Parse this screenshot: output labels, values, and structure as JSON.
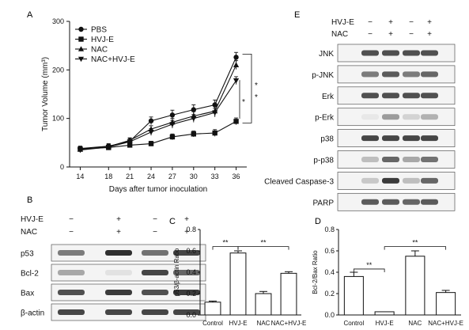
{
  "panels": {
    "A": {
      "letter": "A"
    },
    "B": {
      "letter": "B"
    },
    "C": {
      "letter": "C"
    },
    "D": {
      "letter": "D"
    },
    "E": {
      "letter": "E"
    }
  },
  "chart_data": [
    {
      "id": "A",
      "type": "line",
      "title": "",
      "xlabel": "Days after tumor inoculation",
      "ylabel": "Tumor Volume (mm³)",
      "x": [
        14,
        18,
        21,
        24,
        27,
        30,
        33,
        36
      ],
      "xticks": [
        "14",
        "18",
        "21",
        "24",
        "27",
        "30",
        "33",
        "36"
      ],
      "ylim": [
        0,
        300
      ],
      "yticks": [
        "0",
        "100",
        "200",
        "300"
      ],
      "legend_position": "top-left",
      "series": [
        {
          "name": "PBS",
          "marker": "circle",
          "values": [
            38,
            43,
            53,
            95,
            107,
            118,
            128,
            226
          ],
          "errors": [
            5,
            5,
            6,
            8,
            10,
            10,
            10,
            10
          ]
        },
        {
          "name": "HVJ-E",
          "marker": "square",
          "values": [
            37,
            40,
            45,
            48,
            62,
            68,
            70,
            94
          ],
          "errors": [
            4,
            4,
            4,
            5,
            6,
            6,
            7,
            7
          ]
        },
        {
          "name": "NAC",
          "marker": "triangle-up",
          "values": [
            36,
            42,
            55,
            78,
            92,
            105,
            115,
            210
          ],
          "errors": [
            4,
            5,
            5,
            7,
            8,
            9,
            10,
            9
          ]
        },
        {
          "name": "NAC+HVJ-E",
          "marker": "triangle-down",
          "values": [
            35,
            41,
            52,
            72,
            88,
            100,
            112,
            178
          ],
          "errors": [
            4,
            5,
            5,
            7,
            8,
            8,
            9,
            8
          ]
        }
      ],
      "significance": [
        "*",
        "*",
        "*"
      ]
    },
    {
      "id": "C",
      "type": "bar",
      "title": "",
      "xlabel": "",
      "ylabel": "p53/β-actin Ratio",
      "categories": [
        "Control",
        "HVJ-E",
        "NAC",
        "NAC+HVJ-E"
      ],
      "values": [
        0.12,
        0.58,
        0.2,
        0.39
      ],
      "errors": [
        0.01,
        0.02,
        0.02,
        0.015
      ],
      "ylim": [
        0,
        0.8
      ],
      "yticks": [
        "0.0",
        "0.2",
        "0.4",
        "0.6",
        "0.8"
      ],
      "significance": [
        "**",
        "**"
      ]
    },
    {
      "id": "D",
      "type": "bar",
      "title": "",
      "xlabel": "",
      "ylabel": "Bcl-2/Bax Ratio",
      "categories": [
        "Control",
        "HVJ-E",
        "NAC",
        "NAC+HVJ-E"
      ],
      "values": [
        0.36,
        0.03,
        0.55,
        0.21
      ],
      "errors": [
        0.04,
        0.0,
        0.05,
        0.02
      ],
      "ylim": [
        0,
        0.8
      ],
      "yticks": [
        "0.0",
        "0.2",
        "0.4",
        "0.6",
        "0.8"
      ],
      "significance": [
        "**",
        "**"
      ]
    }
  ],
  "blotB": {
    "treat_rows": [
      {
        "label": "HVJ-E",
        "signs": [
          "−",
          "+",
          "−",
          "+"
        ]
      },
      {
        "label": "NAC",
        "signs": [
          "−",
          "+",
          "−",
          "+"
        ]
      }
    ],
    "proteins": [
      "p53",
      "Bcl-2",
      "Bax",
      "β-actin"
    ],
    "intensity": [
      [
        0.55,
        0.9,
        0.6,
        0.8
      ],
      [
        0.35,
        0.08,
        0.8,
        0.65
      ],
      [
        0.75,
        0.85,
        0.75,
        0.85
      ],
      [
        0.8,
        0.8,
        0.8,
        0.8
      ]
    ]
  },
  "blotE": {
    "treat_rows": [
      {
        "label": "HVJ-E",
        "signs": [
          "−",
          "+",
          "−",
          "+"
        ]
      },
      {
        "label": "NAC",
        "signs": [
          "−",
          "+",
          "−",
          "+"
        ]
      }
    ],
    "proteins": [
      "JNK",
      "p-JNK",
      "Erk",
      "p-Erk",
      "p38",
      "p-p38",
      "Cleaved Caspase-3",
      "PARP"
    ],
    "intensity": [
      [
        0.75,
        0.75,
        0.75,
        0.75
      ],
      [
        0.55,
        0.7,
        0.55,
        0.65
      ],
      [
        0.75,
        0.75,
        0.75,
        0.75
      ],
      [
        0.05,
        0.4,
        0.15,
        0.3
      ],
      [
        0.8,
        0.8,
        0.8,
        0.8
      ],
      [
        0.25,
        0.65,
        0.35,
        0.6
      ],
      [
        0.2,
        0.85,
        0.25,
        0.65
      ],
      [
        0.7,
        0.7,
        0.65,
        0.7
      ]
    ]
  },
  "colors": {
    "ink": "#111111",
    "band": "#1a1a1a",
    "background": "#ffffff"
  }
}
